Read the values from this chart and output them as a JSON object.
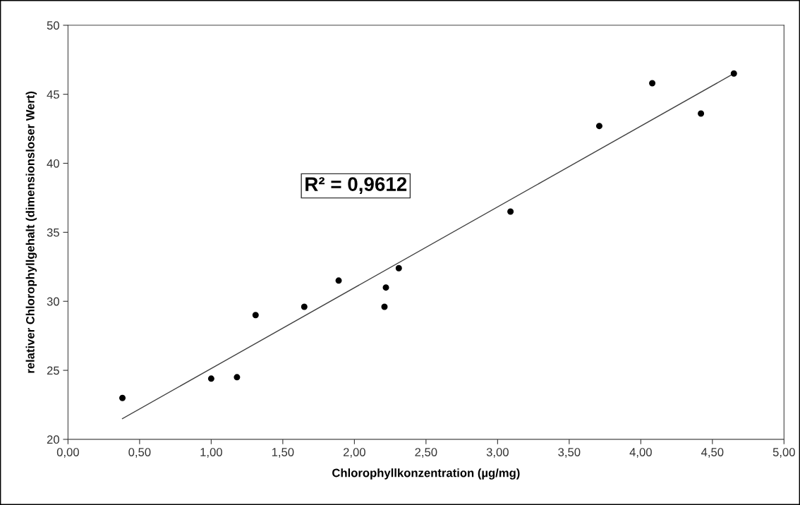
{
  "chart_data": {
    "type": "scatter",
    "xlabel": "Chlorophyllkonzentration (µg/mg)",
    "ylabel": "relativer Chlorophyllgehalt (dimensionsloser Wert)",
    "series": [
      {
        "color": "#000000",
        "marker": "circle",
        "x": [
          0.38,
          1.0,
          1.18,
          1.31,
          1.65,
          1.89,
          2.21,
          2.22,
          2.31,
          3.09,
          3.71,
          4.08,
          4.42,
          4.65
        ],
        "values": [
          23.0,
          24.4,
          24.5,
          29.0,
          29.6,
          31.5,
          29.6,
          31.0,
          32.4,
          36.5,
          42.7,
          45.8,
          43.6,
          46.5
        ]
      },
      {
        "type": "line",
        "color": "#404040",
        "marker": "none",
        "x": [
          0.38,
          4.65
        ],
        "values": [
          21.5,
          46.5
        ]
      }
    ],
    "annotations": [
      "R² = 0,9612"
    ],
    "xlim": [
      0,
      5
    ],
    "xticks": [
      {
        "value": 0,
        "label": "0,00"
      },
      {
        "value": 0.5,
        "label": "0,50"
      },
      {
        "value": 1,
        "label": "1,00"
      },
      {
        "value": 1.5,
        "label": "1,50"
      },
      {
        "value": 2,
        "label": "2,00"
      },
      {
        "value": 2.5,
        "label": "2,50"
      },
      {
        "value": 3,
        "label": "3,00"
      },
      {
        "value": 3.5,
        "label": "3,50"
      },
      {
        "value": 4,
        "label": "4,00"
      },
      {
        "value": 4.5,
        "label": "4,50"
      },
      {
        "value": 5,
        "label": "5,00"
      }
    ],
    "ylim": [
      20,
      50
    ],
    "yticks": [
      20,
      25,
      30,
      35,
      40,
      45,
      50
    ],
    "grid": false,
    "legend": false
  }
}
